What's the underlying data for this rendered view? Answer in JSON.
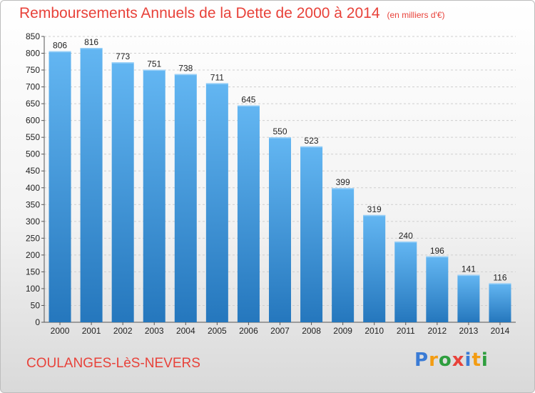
{
  "chart_data": {
    "type": "bar",
    "title": "Remboursements Annuels de la Dette de 2000 à 2014",
    "subtitle": "(en milliers d'€)",
    "categories": [
      "2000",
      "2001",
      "2002",
      "2003",
      "2004",
      "2005",
      "2006",
      "2007",
      "2008",
      "2009",
      "2010",
      "2011",
      "2012",
      "2013",
      "2014"
    ],
    "values": [
      806,
      816,
      773,
      751,
      738,
      711,
      645,
      550,
      523,
      399,
      319,
      240,
      196,
      141,
      116
    ],
    "ylim": [
      0,
      850
    ],
    "yticks": [
      0,
      50,
      100,
      150,
      200,
      250,
      300,
      350,
      400,
      450,
      500,
      550,
      600,
      650,
      700,
      750,
      800,
      850
    ],
    "xlabel": "",
    "ylabel": "",
    "grid": true
  },
  "commune": "COULANGES-LèS-NEVERS",
  "logo": {
    "letters": [
      "P",
      "r",
      "o",
      "x",
      "i",
      "t",
      "i"
    ],
    "colors": [
      "#3a7bd5",
      "#f39c12",
      "#2e9e3e",
      "#e8423a",
      "#3a7bd5",
      "#f39c12",
      "#2e9e3e"
    ]
  },
  "colors": {
    "bar": "#3d98e0",
    "bar_light": "#63b6f2",
    "bar_dark": "#2577bd",
    "accent": "#e8423a"
  }
}
